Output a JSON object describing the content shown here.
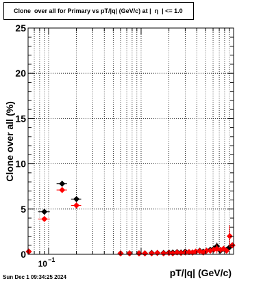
{
  "chart_data": {
    "type": "scatter",
    "title": "Clone  over all for Primary vs pT/|q| (GeV/c) at |  η  | <= 1.0",
    "xlabel": "pT/|q| (GeV/c)",
    "ylabel": "Clone  over all (%)",
    "x_scale": "log",
    "xlim": [
      0.06,
      10
    ],
    "ylim": [
      0,
      25
    ],
    "y_ticks": [
      "0",
      "5",
      "10",
      "15",
      "20",
      "25"
    ],
    "x_tick_label_base": "10",
    "x_tick_label_exp": "−1",
    "x_tick_label_value": 0.1,
    "grid": true,
    "series": [
      {
        "color": "#000000",
        "marker": "diamond",
        "points": [
          {
            "x": 0.061,
            "y": 0.3,
            "xerr": 0.002
          },
          {
            "x": 0.09,
            "y": 4.7,
            "xerr": 0.013
          },
          {
            "x": 0.14,
            "y": 7.8,
            "xerr": 0.018
          },
          {
            "x": 0.2,
            "y": 6.1,
            "xerr": 0.025
          },
          {
            "x": 0.6,
            "y": 0.1
          },
          {
            "x": 0.75,
            "y": 0.1
          },
          {
            "x": 0.95,
            "y": 0.1
          },
          {
            "x": 1.1,
            "y": 0.1
          },
          {
            "x": 1.3,
            "y": 0.15
          },
          {
            "x": 1.5,
            "y": 0.15
          },
          {
            "x": 1.75,
            "y": 0.15
          },
          {
            "x": 2.0,
            "y": 0.2
          },
          {
            "x": 2.2,
            "y": 0.2
          },
          {
            "x": 2.45,
            "y": 0.25
          },
          {
            "x": 2.7,
            "y": 0.2
          },
          {
            "x": 3.0,
            "y": 0.3
          },
          {
            "x": 3.3,
            "y": 0.25
          },
          {
            "x": 3.6,
            "y": 0.2
          },
          {
            "x": 3.9,
            "y": 0.3
          },
          {
            "x": 4.3,
            "y": 0.4
          },
          {
            "x": 4.7,
            "y": 0.3
          },
          {
            "x": 5.1,
            "y": 0.4
          },
          {
            "x": 5.6,
            "y": 0.5
          },
          {
            "x": 6.1,
            "y": 0.6
          },
          {
            "x": 6.6,
            "y": 0.9,
            "yerr": 0.4
          },
          {
            "x": 7.2,
            "y": 0.4
          },
          {
            "x": 7.8,
            "y": 0.6
          },
          {
            "x": 8.4,
            "y": 0.5
          },
          {
            "x": 9.1,
            "y": 0.8
          },
          {
            "x": 9.7,
            "y": 1.0
          }
        ]
      },
      {
        "color": "#ff0000",
        "marker": "diamond",
        "points": [
          {
            "x": 0.061,
            "y": 0.3,
            "xerr": 0.002
          },
          {
            "x": 0.09,
            "y": 3.9,
            "xerr": 0.013
          },
          {
            "x": 0.14,
            "y": 7.1,
            "xerr": 0.018
          },
          {
            "x": 0.2,
            "y": 5.4,
            "xerr": 0.025
          },
          {
            "x": 0.6,
            "y": 0.1
          },
          {
            "x": 0.75,
            "y": 0.1
          },
          {
            "x": 0.95,
            "y": 0.1
          },
          {
            "x": 1.1,
            "y": 0.1
          },
          {
            "x": 1.3,
            "y": 0.1
          },
          {
            "x": 1.5,
            "y": 0.15
          },
          {
            "x": 1.75,
            "y": 0.1
          },
          {
            "x": 2.0,
            "y": 0.15
          },
          {
            "x": 2.2,
            "y": 0.1
          },
          {
            "x": 2.45,
            "y": 0.2
          },
          {
            "x": 2.7,
            "y": 0.15
          },
          {
            "x": 3.0,
            "y": 0.2
          },
          {
            "x": 3.3,
            "y": 0.25
          },
          {
            "x": 3.6,
            "y": 0.2
          },
          {
            "x": 3.9,
            "y": 0.3
          },
          {
            "x": 4.3,
            "y": 0.35
          },
          {
            "x": 4.7,
            "y": 0.2
          },
          {
            "x": 5.1,
            "y": 0.4
          },
          {
            "x": 5.6,
            "y": 0.4
          },
          {
            "x": 6.1,
            "y": 0.5
          },
          {
            "x": 6.6,
            "y": 0.6,
            "yerr": 0.5
          },
          {
            "x": 7.2,
            "y": 0.5
          },
          {
            "x": 7.8,
            "y": 0.6
          },
          {
            "x": 8.4,
            "y": 0.4
          },
          {
            "x": 9.1,
            "y": 2.0,
            "yerr": 1.2
          },
          {
            "x": 9.7,
            "y": 1.0
          }
        ]
      }
    ]
  },
  "footer": {
    "timestamp": "Sun Dec  1 09:34:25 2024"
  }
}
